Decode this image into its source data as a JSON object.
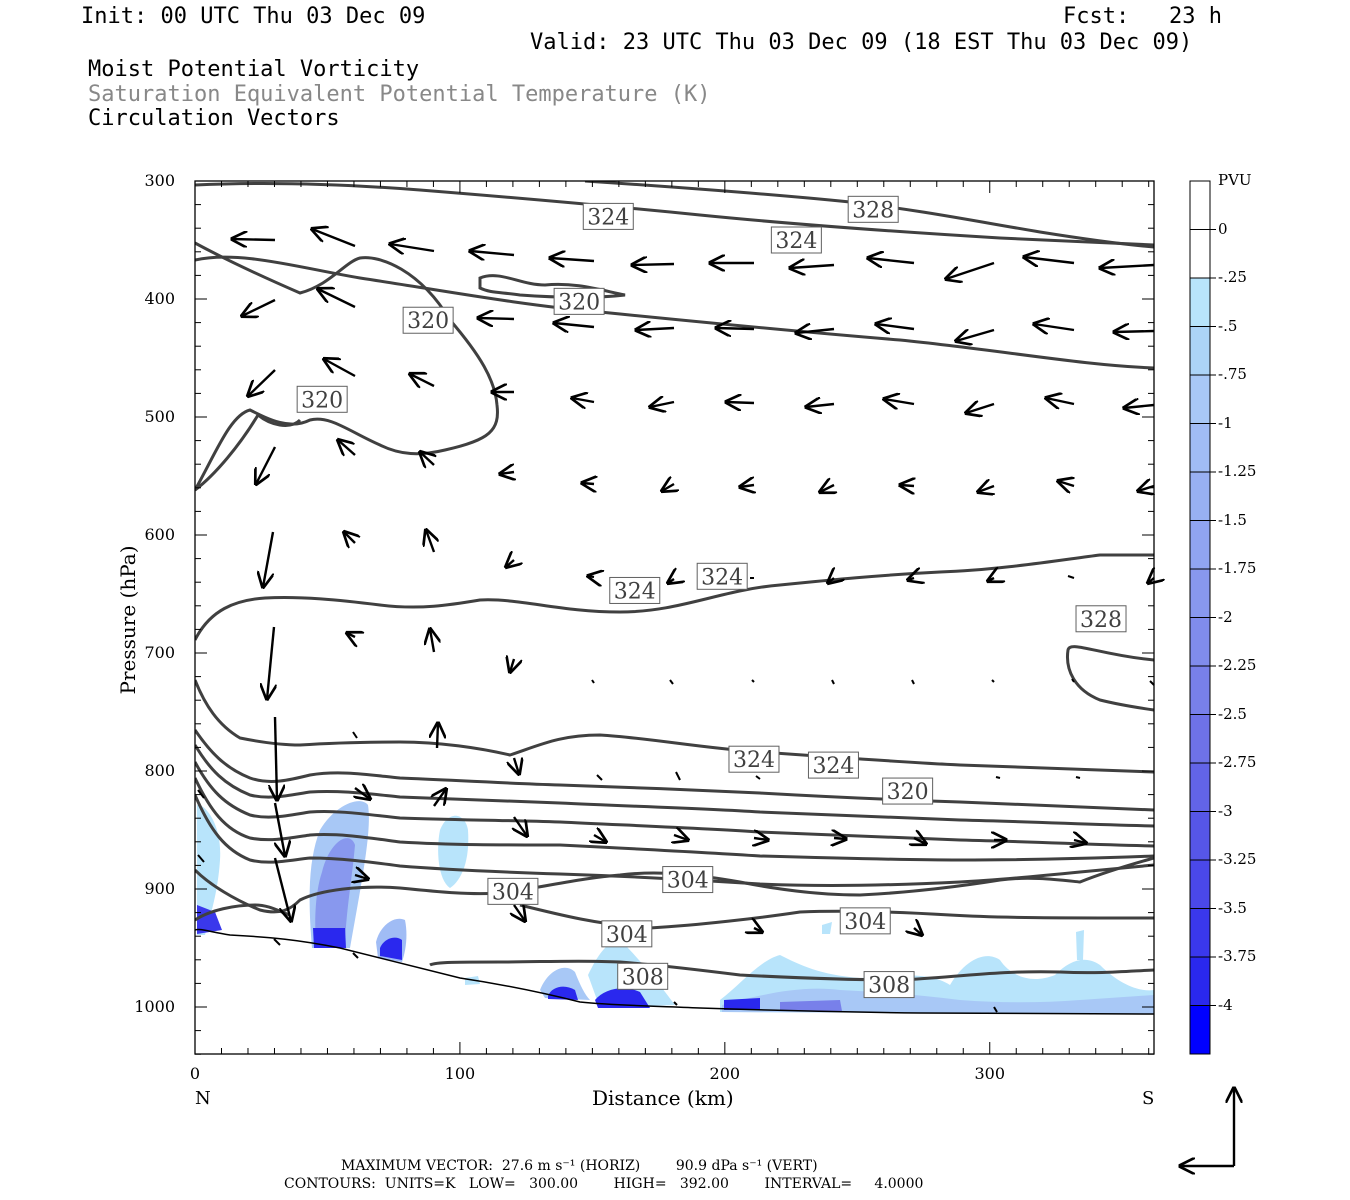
{
  "header": {
    "init": "Init: 00 UTC Thu 03 Dec 09",
    "fcst": "Fcst:   23 h",
    "valid": "Valid: 23 UTC Thu 03 Dec 09 (18 EST Thu 03 Dec 09)",
    "titles": [
      "Moist Potential Vorticity",
      "Saturation Equivalent Potential Temperature (K)",
      "Circulation Vectors"
    ]
  },
  "chart_data": {
    "type": "cross-section",
    "xlabel": "Distance (km)",
    "ylabel": "Pressure (hPa)",
    "xlim": [
      0,
      362
    ],
    "ylim": [
      1040,
      300
    ],
    "x_ticks": [
      0,
      100,
      200,
      300
    ],
    "y_ticks": [
      300,
      400,
      500,
      600,
      700,
      800,
      900,
      1000
    ],
    "x_end_labels": {
      "left": "N",
      "right": "S"
    },
    "colorbar": {
      "unit": "PVU",
      "levels": [
        "0",
        "-.25",
        "-.5",
        "-.75",
        "-1",
        "-1.25",
        "-1.5",
        "-1.75",
        "-2",
        "-2.25",
        "-2.5",
        "-2.75",
        "-3",
        "-3.25",
        "-3.5",
        "-3.75",
        "-4"
      ],
      "colors": [
        "#ffffff",
        "#ffffff",
        "#b8e4fb",
        "#acd4f7",
        "#a8c8f6",
        "#a0bcf5",
        "#98b0f3",
        "#90a4f1",
        "#8898ee",
        "#808cec",
        "#7880ea",
        "#6e72e8",
        "#6264e8",
        "#5656e8",
        "#4a48ea",
        "#3a38ec",
        "#2a28ee",
        "#0000ff"
      ]
    },
    "contour_labels": [
      {
        "text": "324",
        "x": 156,
        "p": 330
      },
      {
        "text": "328",
        "x": 256,
        "p": 324
      },
      {
        "text": "324",
        "x": 227,
        "p": 350
      },
      {
        "text": "320",
        "x": 145,
        "p": 402
      },
      {
        "text": "320",
        "x": 88,
        "p": 418
      },
      {
        "text": "320",
        "x": 48,
        "p": 485
      },
      {
        "text": "324",
        "x": 166,
        "p": 647
      },
      {
        "text": "324",
        "x": 199,
        "p": 635
      },
      {
        "text": "328",
        "x": 342,
        "p": 671
      },
      {
        "text": "324",
        "x": 211,
        "p": 790
      },
      {
        "text": "324",
        "x": 241,
        "p": 795
      },
      {
        "text": "320",
        "x": 269,
        "p": 817
      },
      {
        "text": "304",
        "x": 120,
        "p": 902
      },
      {
        "text": "304",
        "x": 186,
        "p": 892
      },
      {
        "text": "304",
        "x": 163,
        "p": 938
      },
      {
        "text": "304",
        "x": 253,
        "p": 927
      },
      {
        "text": "308",
        "x": 169,
        "p": 974
      },
      {
        "text": "308",
        "x": 262,
        "p": 981
      }
    ],
    "footer": {
      "max_vector": "MAXIMUM VECTOR:  27.6 m s⁻¹ (HORIZ)        90.9 dPa s⁻¹ (VERT)",
      "contours": "CONTOURS:  UNITS=K   LOW=   300.00        HIGH=   392.00        INTERVAL=     4.0000"
    }
  }
}
